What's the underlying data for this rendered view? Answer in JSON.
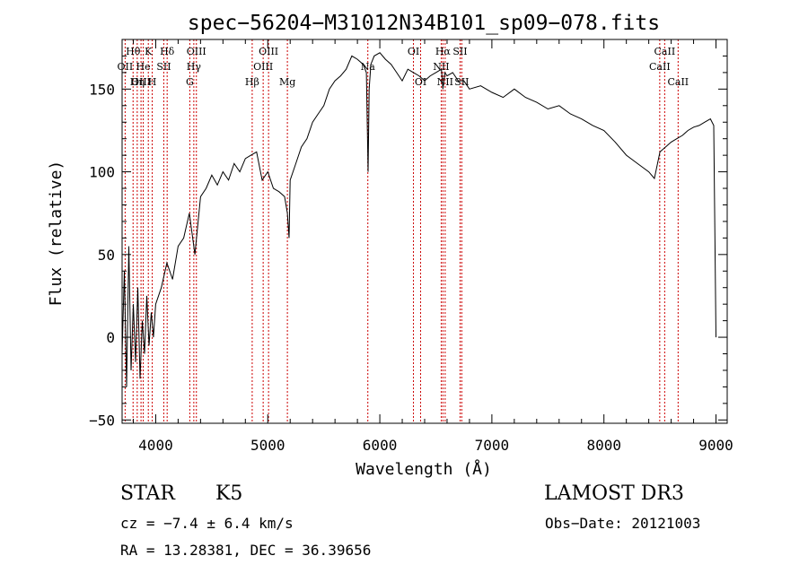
{
  "chart_data": {
    "type": "line",
    "title": "spec−56204−M31012N34B101_sp09−078.fits",
    "xlabel": "Wavelength (Å)",
    "ylabel": "Flux (relative)",
    "xlim": [
      3700,
      9100
    ],
    "ylim": [
      -52,
      180
    ],
    "xticks": [
      4000,
      5000,
      6000,
      7000,
      8000,
      9000
    ],
    "yticks": [
      -50,
      0,
      50,
      100,
      150
    ],
    "xtick_labels": [
      "4000",
      "5000",
      "6000",
      "7000",
      "8000",
      "9000"
    ],
    "ytick_labels": [
      "−50",
      "0",
      "50",
      "100",
      "150"
    ],
    "grid": false,
    "series": [
      {
        "name": "flux",
        "x": [
          3700,
          3720,
          3740,
          3760,
          3780,
          3800,
          3820,
          3840,
          3860,
          3880,
          3900,
          3920,
          3940,
          3960,
          3980,
          4000,
          4050,
          4100,
          4150,
          4200,
          4250,
          4300,
          4350,
          4400,
          4450,
          4500,
          4550,
          4600,
          4650,
          4700,
          4750,
          4800,
          4850,
          4900,
          4950,
          5000,
          5050,
          5100,
          5150,
          5175,
          5190,
          5200,
          5250,
          5300,
          5350,
          5400,
          5450,
          5500,
          5550,
          5600,
          5650,
          5700,
          5750,
          5800,
          5850,
          5880,
          5895,
          5905,
          5920,
          5950,
          6000,
          6050,
          6100,
          6150,
          6200,
          6250,
          6300,
          6350,
          6400,
          6450,
          6500,
          6550,
          6563,
          6580,
          6600,
          6650,
          6700,
          6750,
          6800,
          6900,
          7000,
          7100,
          7200,
          7300,
          7400,
          7500,
          7600,
          7700,
          7800,
          7900,
          8000,
          8100,
          8200,
          8300,
          8400,
          8450,
          8500,
          8550,
          8600,
          8650,
          8700,
          8750,
          8800,
          8850,
          8900,
          8950,
          8980,
          9000
        ],
        "y": [
          -10,
          40,
          -30,
          55,
          -20,
          20,
          -15,
          30,
          -25,
          10,
          -10,
          25,
          -5,
          15,
          0,
          20,
          30,
          45,
          35,
          55,
          60,
          75,
          50,
          85,
          90,
          98,
          92,
          100,
          95,
          105,
          100,
          108,
          110,
          112,
          95,
          100,
          90,
          88,
          85,
          75,
          60,
          95,
          105,
          115,
          120,
          130,
          135,
          140,
          150,
          155,
          158,
          162,
          170,
          168,
          165,
          160,
          100,
          150,
          165,
          170,
          172,
          168,
          165,
          160,
          155,
          162,
          160,
          158,
          155,
          158,
          160,
          162,
          150,
          160,
          158,
          160,
          155,
          155,
          150,
          152,
          148,
          145,
          150,
          145,
          142,
          138,
          140,
          135,
          132,
          128,
          125,
          118,
          110,
          105,
          100,
          96,
          112,
          115,
          118,
          120,
          122,
          125,
          127,
          128,
          130,
          132,
          128,
          0
        ]
      }
    ],
    "line_ids": [
      {
        "label": "Hθ",
        "x": 3798,
        "row": 1
      },
      {
        "label": "OII",
        "x": 3727,
        "row": 2
      },
      {
        "label": "OIII",
        "x": 3869,
        "row": 3
      },
      {
        "label": "K",
        "x": 3934,
        "row": 1
      },
      {
        "label": "He",
        "x": 3889,
        "row": 2
      },
      {
        "label": "Hη",
        "x": 3835,
        "row": 3
      },
      {
        "label": "H",
        "x": 3969,
        "row": 3
      },
      {
        "label": "Hδ",
        "x": 4102,
        "row": 1
      },
      {
        "label": "SII",
        "x": 4072,
        "row": 2
      },
      {
        "label": "OIII",
        "x": 4363,
        "row": 1
      },
      {
        "label": "Hγ",
        "x": 4340,
        "row": 2
      },
      {
        "label": "G",
        "x": 4304,
        "row": 3
      },
      {
        "label": "OIII",
        "x": 5007,
        "row": 1
      },
      {
        "label": "OIII",
        "x": 4959,
        "row": 2
      },
      {
        "label": "Hβ",
        "x": 4861,
        "row": 3
      },
      {
        "label": "Mg",
        "x": 5175,
        "row": 3
      },
      {
        "label": "Na",
        "x": 5893,
        "row": 2
      },
      {
        "label": "OI",
        "x": 6300,
        "row": 1
      },
      {
        "label": "OI",
        "x": 6364,
        "row": 3
      },
      {
        "label": "Hα",
        "x": 6563,
        "row": 1
      },
      {
        "label": "NII",
        "x": 6548,
        "row": 2
      },
      {
        "label": "NII",
        "x": 6583,
        "row": 3
      },
      {
        "label": "SII",
        "x": 6716,
        "row": 1
      },
      {
        "label": "SII",
        "x": 6731,
        "row": 3
      },
      {
        "label": "CaII",
        "x": 8542,
        "row": 1
      },
      {
        "label": "CaII",
        "x": 8498,
        "row": 2
      },
      {
        "label": "CaII",
        "x": 8662,
        "row": 3
      }
    ]
  },
  "info": {
    "class_label": "STAR",
    "subclass": "K5",
    "survey": "LAMOST DR3",
    "cz": "cz = −7.4 ± 6.4 km/s",
    "obs_date": "Obs−Date: 20121003",
    "coords": "RA =  13.28381, DEC =  36.39656"
  },
  "colors": {
    "line": "#000000",
    "marker": "#cc0000",
    "background": "#ffffff"
  }
}
